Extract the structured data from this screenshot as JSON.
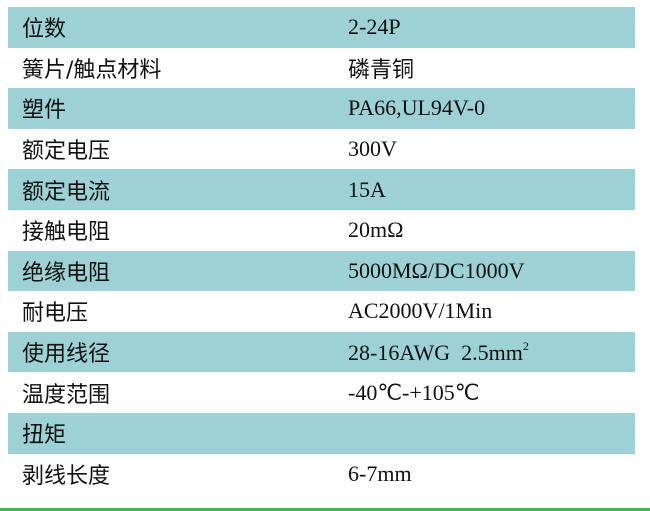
{
  "rows": [
    {
      "label": "位数",
      "value": "2-24P"
    },
    {
      "label": "簧片/触点材料",
      "value": "磷青铜"
    },
    {
      "label": "塑件",
      "value": "PA66,UL94V-0"
    },
    {
      "label": "额定电压",
      "value": "300V"
    },
    {
      "label": "额定电流",
      "value": "15A"
    },
    {
      "label": "接触电阻",
      "value": "20mΩ"
    },
    {
      "label": "绝缘电阻",
      "value": "5000MΩ/DC1000V"
    },
    {
      "label": "耐电压",
      "value": "AC2000V/1Min"
    },
    {
      "label": "使用线径",
      "value": "28-16AWG  2.5mm",
      "sup": "2"
    },
    {
      "label": "温度范围",
      "value": "-40℃-+105℃"
    },
    {
      "label": "扭矩",
      "value": ""
    },
    {
      "label": "剥线长度",
      "value": "6-7mm"
    }
  ],
  "colors": {
    "shade": "#9dd1d5",
    "bottom_line": "#4caf50"
  }
}
